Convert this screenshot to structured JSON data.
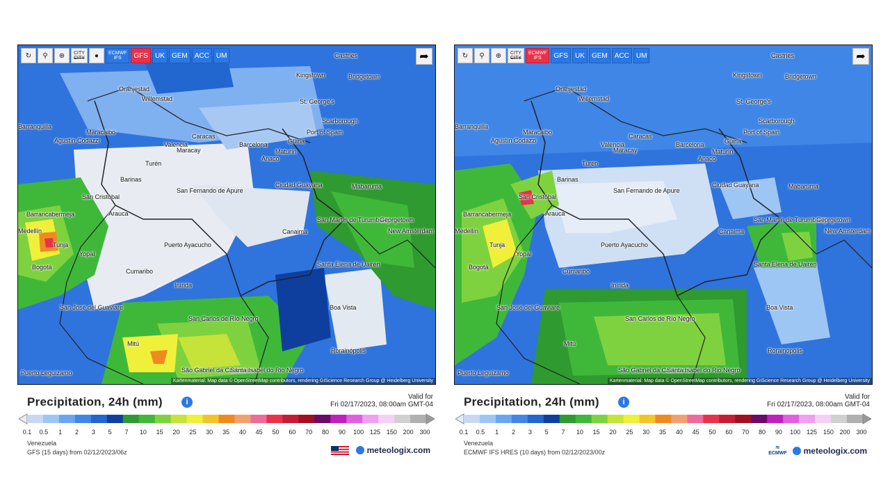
{
  "toolbar_common": {
    "reload_icon": "reload-icon",
    "location_icon": "location-pin-icon",
    "zoom_icon": "zoom-icon",
    "city_label_top": "CITY",
    "city_label_bottom": "CITY",
    "share_icon": "share-icon"
  },
  "panels": [
    {
      "models": [
        {
          "label": "ECMWF",
          "label2": "IFS",
          "active": false
        },
        {
          "label": "GFS",
          "active": true
        },
        {
          "label": "UK",
          "active": false
        },
        {
          "label": "GEM",
          "active": false
        },
        {
          "label": "ACC",
          "active": false
        },
        {
          "label": "UM",
          "active": false
        }
      ],
      "attribution": "Kartenmaterial: Map data © OpenStreetMap contributors, rendering GIScience Research Group @ Heidelberg University",
      "title": "Precipitation, 24h (mm)",
      "valid_for_label": "Valid for",
      "valid_for_value": "Fri 02/17/2023, 08:00am GMT-04",
      "region": "Venezuela",
      "model_line": "GFS (15 days) from 02/12/2023/06z",
      "brand": "meteologix.com"
    },
    {
      "models": [
        {
          "label": "ECMWF",
          "label2": "IFS",
          "active": true
        },
        {
          "label": "GFS",
          "active": false
        },
        {
          "label": "UK",
          "active": false
        },
        {
          "label": "GEM",
          "active": false
        },
        {
          "label": "ACC",
          "active": false
        },
        {
          "label": "UM",
          "active": false
        }
      ],
      "attribution": "Kartenmaterial: Map data © OpenStreetMap contributors, rendering GIScience Research Group @ Heidelberg University",
      "title": "Precipitation, 24h (mm)",
      "valid_for_label": "Valid for",
      "valid_for_value": "Fri 02/17/2023, 08:00am GMT-04",
      "region": "Venezuela",
      "model_line": "ECMWF IFS HRES (10 days) from 02/12/2023/00z",
      "brand": "meteologix.com",
      "ecmwf_logo": "ECMWF"
    }
  ],
  "cities": [
    "Castries",
    "Kingstown",
    "Bridgetown",
    "Oranjestad",
    "Willemstad",
    "St. George's",
    "Scarborough",
    "Port of Spain",
    "Barranquilla",
    "Maracaibo",
    "Agustín Codazzi",
    "Caracas",
    "Valencia",
    "Maracay",
    "Barcelona",
    "Güiria",
    "Maturín",
    "Turén",
    "Anaco",
    "Barinas",
    "San Fernando de Apure",
    "Ciudad Guayana",
    "Mabaruma",
    "San Cristóbal",
    "Barrancabermeja",
    "Arauca",
    "San Martín de Turumbang",
    "Georgetown",
    "New Amsterdam",
    "Canaima",
    "Tunja",
    "Yopal",
    "Puerto Ayacucho",
    "Bogotá",
    "Cumaribo",
    "Santa Elena de Uairén",
    "Inírida",
    "San José del Guaviare",
    "Boa Vista",
    "San Carlos de Río Negro",
    "Mitú",
    "Rorainópolis",
    "São Gabriel da Cachoeira",
    "Santa Isabel do Rio Negro",
    "Puerto Leguízamo",
    "Medellín"
  ],
  "scale": {
    "colors": [
      "#c8d8f0",
      "#9ec6f5",
      "#6aa6f0",
      "#3f86e6",
      "#2266d0",
      "#0f3f9e",
      "#2f9a2f",
      "#3fb83a",
      "#7fd23f",
      "#c6e33a",
      "#f0f03a",
      "#f3c52a",
      "#f08a1f",
      "#f2a070",
      "#f06a9a",
      "#e8324a",
      "#c41d34",
      "#a01020",
      "#6a0a6a",
      "#c020c0",
      "#e060e0",
      "#f0a0f0",
      "#f4d0f4",
      "#d0d0d0",
      "#b0b0b0"
    ],
    "ticks": [
      "0.1",
      "0.5",
      "1",
      "2",
      "3",
      "5",
      "7",
      "10",
      "15",
      "20",
      "25",
      "30",
      "35",
      "40",
      "45",
      "50",
      "60",
      "70",
      "80",
      "90",
      "100",
      "125",
      "150",
      "200",
      "300"
    ]
  }
}
